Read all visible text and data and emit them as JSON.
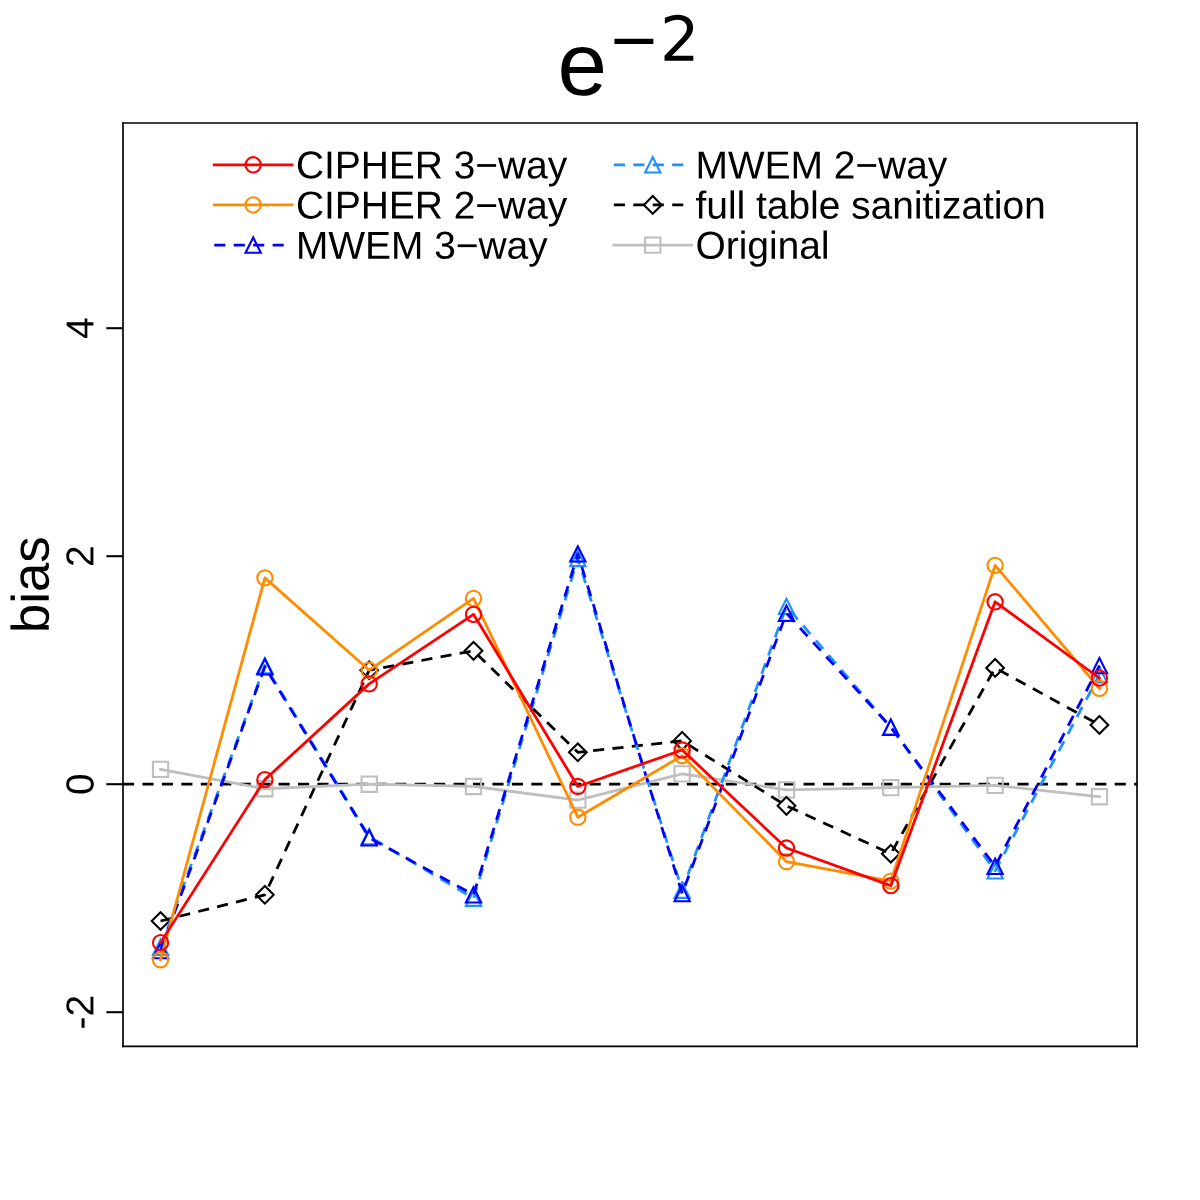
{
  "chart_data": {
    "type": "line",
    "title": "e$^{−2}$",
    "ylabel": "bias",
    "categories": [
      null,
      null,
      null,
      null,
      null,
      null,
      null,
      null,
      null,
      null
    ],
    "series": [
      {
        "name": "CIPHER 3−way",
        "color": "#ff0000",
        "marker": "circle",
        "line_style": "solid",
        "values": [
          -1.39,
          0.04,
          0.88,
          1.49,
          -0.02,
          0.3,
          -0.56,
          -0.89,
          1.6,
          0.93
        ]
      },
      {
        "name": "CIPHER 2−way",
        "color": "#ff8c00",
        "marker": "circle",
        "line_style": "solid",
        "values": [
          -1.54,
          1.81,
          1.0,
          1.63,
          -0.29,
          0.25,
          -0.68,
          -0.85,
          1.92,
          0.84
        ]
      },
      {
        "name": "MWEM 3−way",
        "color": "#0000ff",
        "marker": "triangle",
        "line_style": "dashed",
        "values": [
          -1.46,
          1.03,
          -0.47,
          -0.97,
          2.02,
          -0.96,
          1.5,
          0.5,
          -0.72,
          1.04
        ]
      },
      {
        "name": "MWEM 2−way",
        "color": "#1e90ff",
        "marker": "triangle",
        "line_style": "dashed",
        "values": [
          -1.43,
          1.04,
          -0.46,
          -1.0,
          1.98,
          -0.93,
          1.56,
          0.5,
          -0.76,
          0.96
        ]
      },
      {
        "name": "full table sanitization",
        "color": "#000000",
        "marker": "diamond",
        "line_style": "dashed",
        "values": [
          -1.2,
          -0.97,
          1.0,
          1.17,
          0.28,
          0.38,
          -0.19,
          -0.61,
          1.02,
          0.52
        ]
      },
      {
        "name": "Original",
        "color": "#bebebe",
        "marker": "square",
        "line_style": "solid",
        "values": [
          0.13,
          -0.04,
          0.0,
          -0.02,
          -0.14,
          0.09,
          -0.05,
          -0.03,
          -0.01,
          -0.11
        ]
      }
    ],
    "ylim": [
      -2.3,
      5.8
    ],
    "yticks": [
      -2,
      0,
      2,
      4
    ],
    "ref_lines": [
      {
        "axis": "y",
        "value": 0,
        "color": "#000000",
        "line_style": "dashed"
      }
    ],
    "legend": "top",
    "grid": false,
    "tick_labels": "y"
  }
}
